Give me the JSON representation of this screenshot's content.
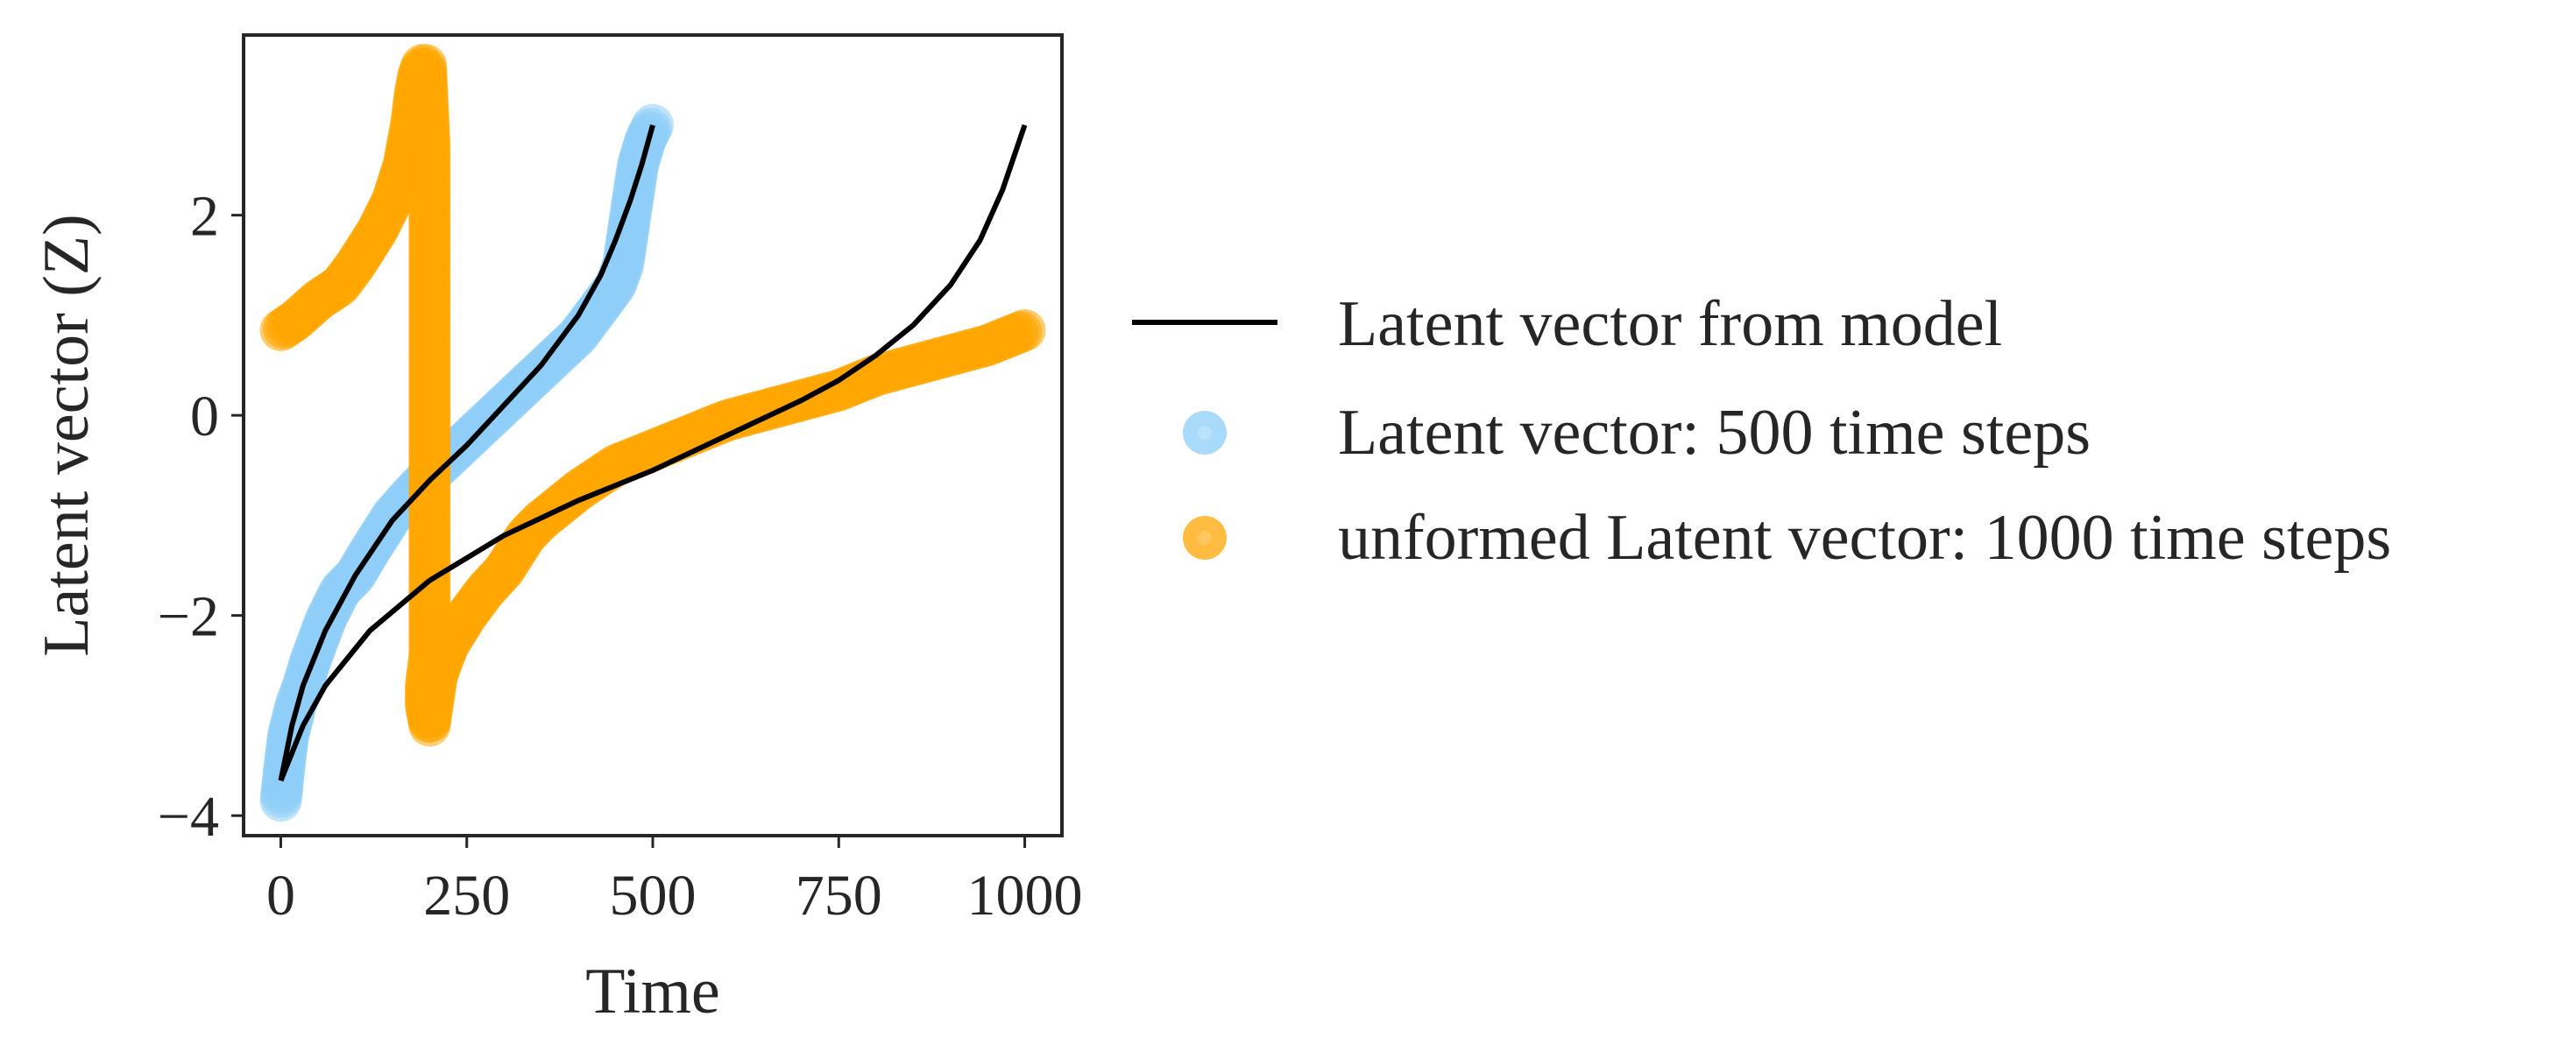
{
  "colors": {
    "model": "#000000",
    "blue": "#8ecef8",
    "orange": "#ffa500",
    "axes": "#262626"
  },
  "chart_data": {
    "type": "scatter",
    "title": "",
    "xlabel": "Time",
    "ylabel": "Latent vector (Z)",
    "xlim": [
      -50,
      1050
    ],
    "ylim": [
      -4.2,
      3.8
    ],
    "xticks": [
      0,
      250,
      500,
      750,
      1000
    ],
    "yticks": [
      -4,
      -2,
      0,
      2
    ],
    "xtick_labels": [
      "0",
      "250",
      "500",
      "750",
      "1000"
    ],
    "ytick_labels": [
      "−4",
      "−2",
      "0",
      "2"
    ],
    "grid": false,
    "legend": {
      "placement": "outside-right",
      "entries": [
        "Latent vector from model",
        "Latent vector: 500 time steps",
        "unformed Latent vector: 1000 time steps"
      ]
    },
    "series": [
      {
        "name": "Latent vector from model",
        "kind": "line",
        "color": "#000000",
        "segments": [
          {
            "x": [
              0,
              15,
              30,
              60,
              100,
              150,
              200,
              250,
              300,
              350,
              400,
              430,
              450,
              470,
              485,
              500
            ],
            "y": [
              -3.65,
              -3.1,
              -2.7,
              -2.15,
              -1.6,
              -1.05,
              -0.65,
              -0.3,
              0.1,
              0.5,
              1.0,
              1.4,
              1.75,
              2.15,
              2.5,
              2.9
            ]
          },
          {
            "x": [
              0,
              30,
              60,
              120,
              200,
              300,
              400,
              500,
              600,
              700,
              750,
              800,
              850,
              900,
              940,
              970,
              1000
            ],
            "y": [
              -3.65,
              -3.1,
              -2.7,
              -2.15,
              -1.65,
              -1.2,
              -0.85,
              -0.55,
              -0.2,
              0.15,
              0.35,
              0.6,
              0.9,
              1.3,
              1.75,
              2.25,
              2.9
            ]
          }
        ]
      },
      {
        "name": "Latent vector: 500 time steps",
        "kind": "scatter",
        "color": "#8ecef8",
        "x": [
          0,
          5,
          10,
          20,
          30,
          40,
          60,
          80,
          100,
          120,
          150,
          180,
          200,
          250,
          300,
          350,
          400,
          430,
          450,
          460,
          470,
          480,
          490,
          500
        ],
        "y": [
          -3.85,
          -3.5,
          -3.2,
          -2.9,
          -2.7,
          -2.45,
          -2.05,
          -1.75,
          -1.6,
          -1.35,
          -1.0,
          -0.75,
          -0.6,
          -0.25,
          0.1,
          0.45,
          0.8,
          1.1,
          1.3,
          1.5,
          2.0,
          2.5,
          2.75,
          2.9
        ]
      },
      {
        "name": "unformed Latent vector: 1000 time steps",
        "kind": "scatter",
        "color": "#ffa500",
        "x": [
          0,
          20,
          50,
          80,
          100,
          130,
          150,
          165,
          175,
          180,
          185,
          190,
          195,
          200,
          200,
          200,
          200,
          200,
          195,
          195,
          200,
          210,
          225,
          250,
          275,
          300,
          330,
          350,
          400,
          450,
          500,
          550,
          600,
          650,
          700,
          750,
          800,
          850,
          900,
          950,
          1000
        ],
        "y": [
          0.85,
          0.95,
          1.15,
          1.3,
          1.5,
          1.85,
          2.15,
          2.5,
          2.9,
          3.2,
          3.4,
          3.5,
          3.5,
          2.7,
          1.45,
          -0.05,
          -1.5,
          -2.4,
          -2.7,
          -2.9,
          -3.1,
          -2.6,
          -2.3,
          -2.0,
          -1.75,
          -1.55,
          -1.2,
          -1.05,
          -0.75,
          -0.5,
          -0.35,
          -0.2,
          -0.05,
          0.05,
          0.15,
          0.25,
          0.4,
          0.5,
          0.6,
          0.7,
          0.85
        ]
      }
    ]
  }
}
